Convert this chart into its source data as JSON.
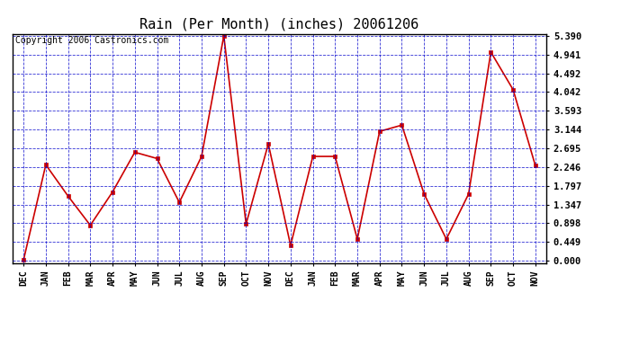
{
  "title": "Rain (Per Month) (inches) 20061206",
  "copyright": "Copyright 2006 Castronics.com",
  "categories": [
    "DEC",
    "JAN",
    "FEB",
    "MAR",
    "APR",
    "MAY",
    "JUN",
    "JUL",
    "AUG",
    "SEP",
    "OCT",
    "NOV",
    "DEC",
    "JAN",
    "FEB",
    "MAR",
    "APR",
    "MAY",
    "JUN",
    "JUL",
    "AUG",
    "SEP",
    "OCT",
    "NOV"
  ],
  "values": [
    0.02,
    2.3,
    1.55,
    0.85,
    1.65,
    2.6,
    2.45,
    1.4,
    2.5,
    5.39,
    0.88,
    2.8,
    0.37,
    2.5,
    2.5,
    0.52,
    3.1,
    3.25,
    1.6,
    0.52,
    1.6,
    5.0,
    4.1,
    2.28
  ],
  "yticks": [
    0.0,
    0.449,
    0.898,
    1.347,
    1.797,
    2.246,
    2.695,
    3.144,
    3.593,
    4.042,
    4.492,
    4.941,
    5.39
  ],
  "line_color": "#cc0000",
  "marker_color": "#cc0000",
  "bg_color": "#ffffff",
  "grid_color": "#0000cc",
  "title_fontsize": 11,
  "copyright_fontsize": 7,
  "ymax": 5.39,
  "ymin": 0.0
}
